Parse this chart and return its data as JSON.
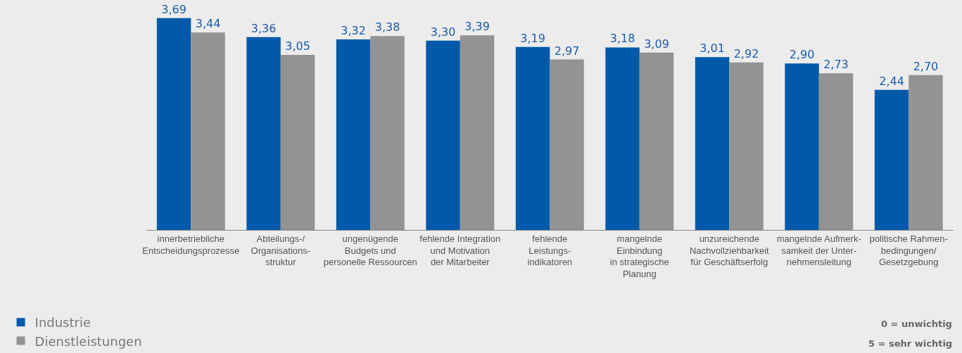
{
  "chart_data": {
    "type": "bar",
    "categories": [
      "innerbetriebliche\nEntscheidungsprozesse",
      "Abteilungs-/\nOrganisations-\nstruktur",
      "ungenügende\nBudgets und\npersonelle Ressourcen",
      "fehlende Integration\nund Motivation\nder Mitarbeiter",
      "fehlende\nLeistungs-\nindikatoren",
      "mangelnde\nEinbindung\nin strategische\nPlanung",
      "unzureichende\nNachvollziehbarkeit\nfür Geschäftserfolg",
      "mangelnde Aufmerk-\nsamkeit der Unter-\nnehmensleitung",
      "politische Rahmen-\nbedingungen/\nGesetzgebung"
    ],
    "series": [
      {
        "name": "Industrie",
        "color": "#005aa9",
        "values": [
          3.69,
          3.36,
          3.32,
          3.3,
          3.19,
          3.18,
          3.01,
          2.9,
          2.44
        ],
        "value_labels": [
          "3,69",
          "3,36",
          "3,32",
          "3,30",
          "3,19",
          "3,18",
          "3,01",
          "2,90",
          "2,44"
        ]
      },
      {
        "name": "Dienstleistungen",
        "color": "#939393",
        "values": [
          3.44,
          3.05,
          3.38,
          3.39,
          2.97,
          3.09,
          2.92,
          2.73,
          2.7
        ],
        "value_labels": [
          "3,44",
          "3,05",
          "3,38",
          "3,39",
          "2,97",
          "3,09",
          "2,92",
          "2,73",
          "2,70"
        ]
      }
    ],
    "tick_labels": "x",
    "grid": false,
    "legend": "bottom left",
    "annotations": [
      "0 = unwichtig",
      "5 = sehr wichtig"
    ]
  }
}
